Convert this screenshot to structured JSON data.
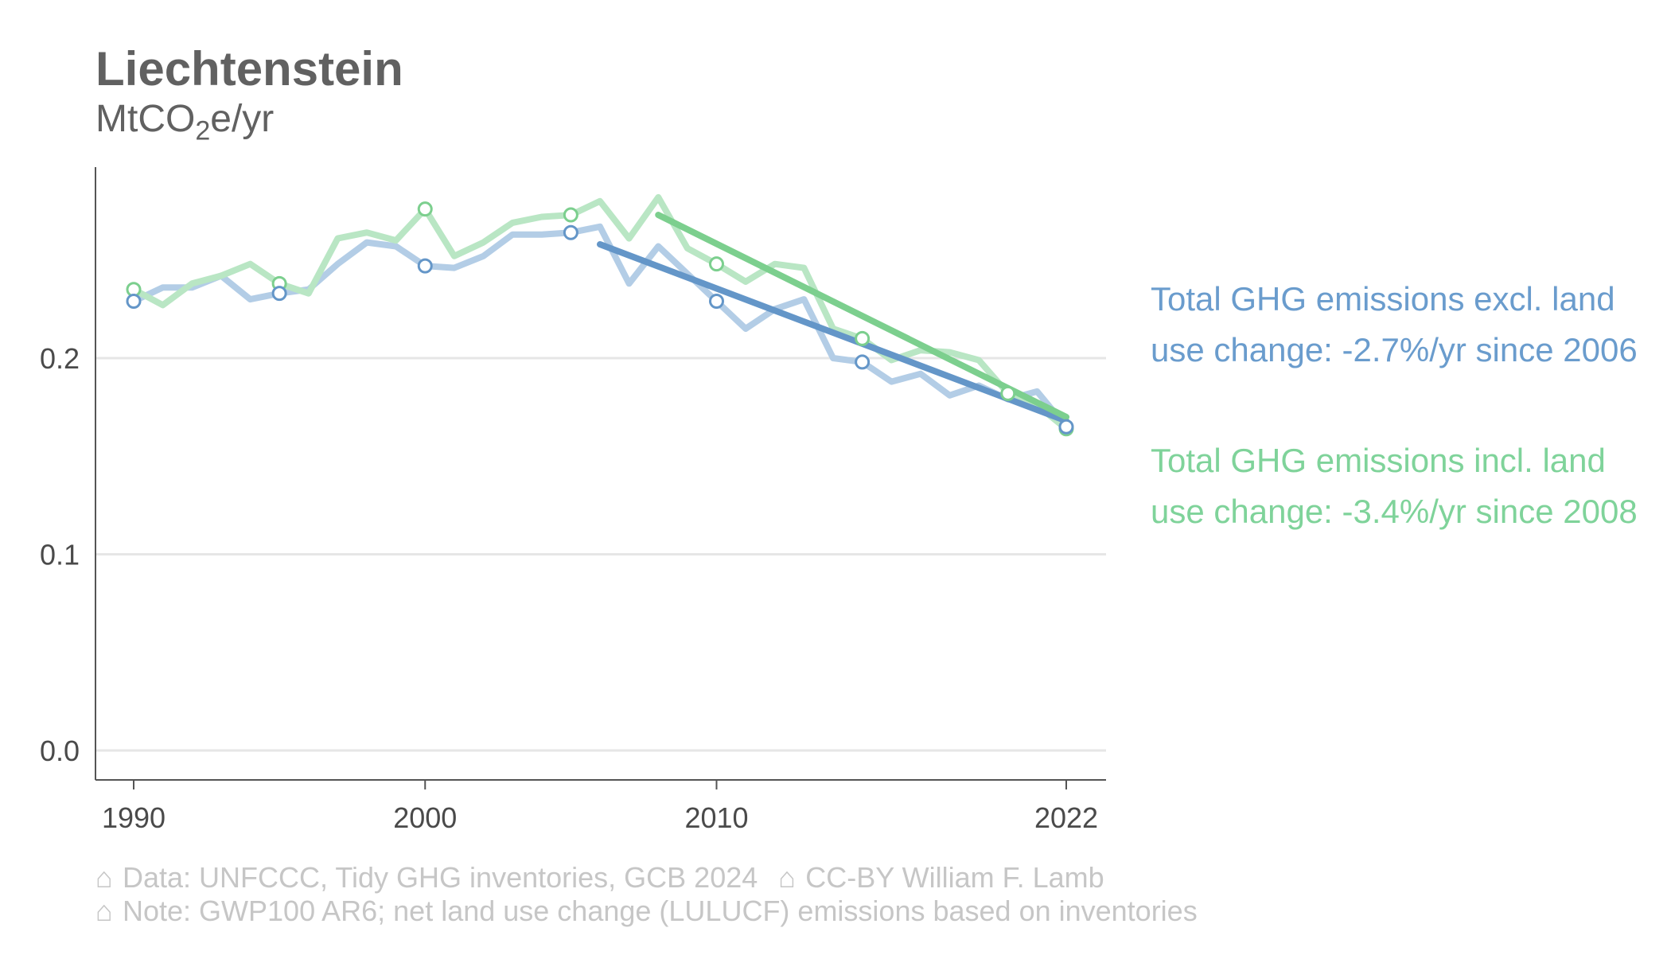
{
  "title": "Liechtenstein",
  "unit": {
    "prefix": "MtCO",
    "sub": "2",
    "suffix": "e/yr"
  },
  "legend": {
    "excl": "Total GHG emissions excl. land use change: -2.7%/yr since 2006",
    "incl": "Total GHG emissions incl. land use change: -3.4%/yr since 2008"
  },
  "caption": {
    "icon": "⌂",
    "data_source": "Data: UNFCCC, Tidy GHG inventories, GCB 2024",
    "license": "CC-BY William F. Lamb",
    "note": "Note: GWP100 AR6; net land use change (LULUCF) emissions based on inventories"
  },
  "chart_data": {
    "type": "line",
    "x_ticks": [
      1990,
      2000,
      2010,
      2022
    ],
    "y_ticks": [
      0.0,
      0.1,
      0.2
    ],
    "y_tick_labels": [
      "0.0",
      "0.1",
      "0.2"
    ],
    "xlim": [
      1989,
      2023
    ],
    "ylim": [
      -0.014,
      0.297
    ],
    "grid": "horizontal",
    "legend_position": "right",
    "colors": {
      "excl_line": "#b3cde6",
      "excl_trend": "#6496c8",
      "incl_line": "#b9e6c4",
      "incl_trend": "#7ccf8e"
    },
    "series": [
      {
        "key": "excl",
        "years": [
          1990,
          1991,
          1992,
          1993,
          1994,
          1995,
          1996,
          1997,
          1998,
          1999,
          2000,
          2001,
          2002,
          2003,
          2004,
          2005,
          2006,
          2007,
          2008,
          2009,
          2010,
          2011,
          2012,
          2013,
          2014,
          2015,
          2016,
          2017,
          2018,
          2019,
          2020,
          2021,
          2022
        ],
        "values": [
          0.229,
          0.236,
          0.236,
          0.242,
          0.23,
          0.233,
          0.235,
          0.248,
          0.259,
          0.257,
          0.247,
          0.246,
          0.252,
          0.263,
          0.263,
          0.264,
          0.267,
          0.238,
          0.257,
          0.243,
          0.229,
          0.215,
          0.225,
          0.23,
          0.2,
          0.198,
          0.188,
          0.192,
          0.181,
          0.186,
          0.179,
          0.183,
          0.165
        ],
        "markers": [
          1990,
          1995,
          2000,
          2005,
          2010,
          2015,
          2022
        ],
        "trend": {
          "start_year": 2006,
          "end_year": 2022,
          "start_value": 0.258,
          "end_value": 0.168
        }
      },
      {
        "key": "incl",
        "years": [
          1990,
          1991,
          1992,
          1993,
          1994,
          1995,
          1996,
          1997,
          1998,
          1999,
          2000,
          2001,
          2002,
          2003,
          2004,
          2005,
          2006,
          2007,
          2008,
          2009,
          2010,
          2011,
          2012,
          2013,
          2014,
          2015,
          2016,
          2017,
          2018,
          2019,
          2020,
          2021,
          2022
        ],
        "values": [
          0.235,
          0.227,
          0.238,
          0.242,
          0.248,
          0.238,
          0.233,
          0.261,
          0.264,
          0.26,
          0.276,
          0.252,
          0.259,
          0.269,
          0.272,
          0.273,
          0.28,
          0.261,
          0.282,
          0.256,
          0.248,
          0.239,
          0.248,
          0.246,
          0.215,
          0.21,
          0.199,
          0.204,
          0.203,
          0.199,
          0.182,
          0.176,
          0.164
        ],
        "markers": [
          1990,
          1995,
          2000,
          2005,
          2010,
          2015,
          2020,
          2022
        ],
        "trend": {
          "start_year": 2008,
          "end_year": 2022,
          "start_value": 0.273,
          "end_value": 0.17
        }
      }
    ]
  }
}
